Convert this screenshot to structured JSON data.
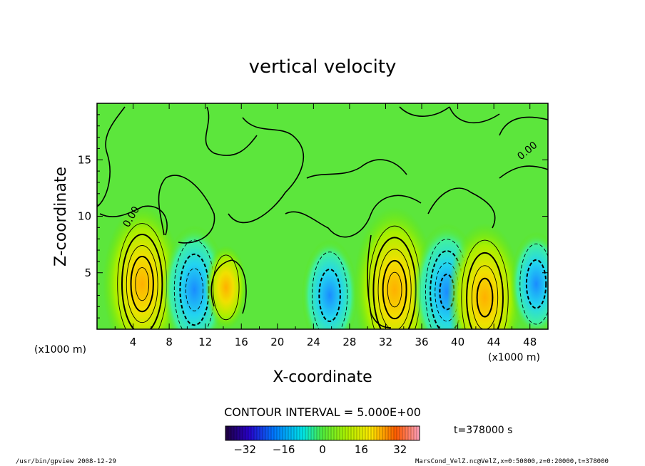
{
  "chart_data": {
    "type": "heatmap",
    "title": "vertical velocity",
    "xlabel": "X-coordinate",
    "ylabel": "Z-coordinate",
    "x_unit_label_left": "(x1000 m)",
    "x_unit_label_right": "(x1000 m)",
    "xlim": [
      0,
      50
    ],
    "ylim": [
      0,
      20
    ],
    "x_ticks": [
      "4",
      "8",
      "12",
      "16",
      "20",
      "24",
      "28",
      "32",
      "36",
      "40",
      "44",
      "48"
    ],
    "y_ticks": [
      "5",
      "10",
      "15"
    ],
    "contour_interval_label": "CONTOUR INTERVAL = 5.000E+00",
    "contour_line_label": "0.00",
    "time_label": "t=378000 s",
    "colorbar": {
      "range": [
        -40,
        40
      ],
      "tick_labels": [
        "-32",
        "-16",
        "0",
        "16",
        "32"
      ]
    },
    "features": [
      {
        "kind": "updraft",
        "x": 5,
        "z": 4,
        "peak": 25
      },
      {
        "kind": "downdraft",
        "x": 10.8,
        "z": 3.5,
        "peak": -18
      },
      {
        "kind": "updraft",
        "x": 14.3,
        "z": 3.7,
        "peak": 7
      },
      {
        "kind": "downdraft",
        "x": 25.8,
        "z": 3,
        "peak": -14
      },
      {
        "kind": "updraft",
        "x": 33,
        "z": 3.5,
        "peak": 27
      },
      {
        "kind": "downdraft",
        "x": 38.8,
        "z": 3.3,
        "peak": -20
      },
      {
        "kind": "updraft",
        "x": 43,
        "z": 2.8,
        "peak": 23
      },
      {
        "kind": "downdraft",
        "x": 48.7,
        "z": 4,
        "peak": -12
      }
    ]
  },
  "footer": {
    "program": "/usr/bin/gpview  2008-12-29",
    "source": "MarsCond_VelZ.nc@VelZ,x=0:50000,z=0:20000,t=378000"
  }
}
